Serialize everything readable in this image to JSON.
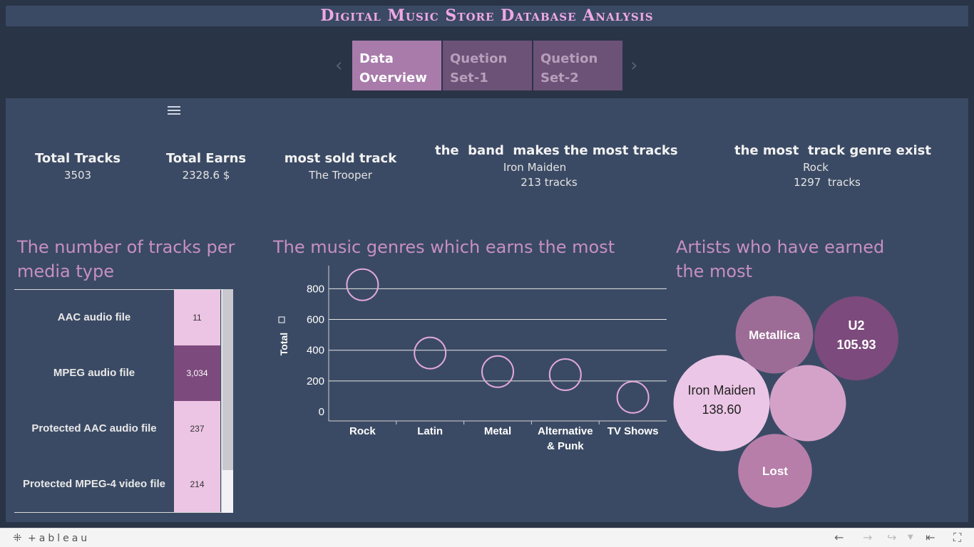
{
  "title": "Digital Music Store Database Analysis",
  "tabs": [
    {
      "label_line1": "Data",
      "label_line2": "Overview",
      "active": true
    },
    {
      "label_line1": "Quetion",
      "label_line2": "Set-1",
      "active": false
    },
    {
      "label_line1": "Quetion",
      "label_line2": "Set-2",
      "active": false
    }
  ],
  "kpis": {
    "total_tracks": {
      "label": "Total Tracks",
      "value": "3503"
    },
    "total_earns": {
      "label": "Total Earns",
      "value": "2328.6 $"
    },
    "most_sold": {
      "label": "most sold track",
      "value": "The Trooper"
    },
    "top_band": {
      "label": "the  band  makes the most tracks",
      "name": "Iron Maiden",
      "count": "213 tracks"
    },
    "top_genre": {
      "label": "the most  track genre exist",
      "name": "Rock",
      "count": "1297  tracks"
    }
  },
  "media": {
    "title_line1": "The number of tracks per",
    "title_line2": "media type",
    "rows": [
      {
        "label": "AAC audio file",
        "value": "11",
        "color": "#ecc4e4",
        "text_color": "#333333"
      },
      {
        "label": "MPEG audio file",
        "value": "3,034",
        "color": "#7c4a7c",
        "text_color": "#ffffff"
      },
      {
        "label": "Protected AAC audio file",
        "value": "237",
        "color": "#ecc4e4",
        "text_color": "#333333"
      },
      {
        "label": "Protected MPEG-4 video file",
        "value": "214",
        "color": "#ecc4e4",
        "text_color": "#333333"
      }
    ]
  },
  "genres": {
    "title": "The music genres which earns the most"
  },
  "artists": {
    "title_line1": "Artists who have earned",
    "title_line2": "the most"
  },
  "chart_data": [
    {
      "type": "scatter",
      "title": "The music genres which earns the most",
      "ylabel": "Total",
      "xlabel": "",
      "categories": [
        "Rock",
        "Latin",
        "Metal",
        "Alternative & Punk",
        "TV Shows"
      ],
      "category_lines": [
        [
          "Rock"
        ],
        [
          "Latin"
        ],
        [
          "Metal"
        ],
        [
          "Alternative",
          "& Punk"
        ],
        [
          "TV Shows"
        ]
      ],
      "values": [
        826,
        382,
        261,
        241,
        94
      ],
      "y_ticks": [
        0,
        200,
        400,
        600,
        800
      ],
      "ylim": [
        -60,
        950
      ],
      "grid": true,
      "marker_color": "#e2a9dc"
    },
    {
      "type": "bubble",
      "title": "Artists who have earned the most",
      "series": [
        {
          "name": "Iron Maiden",
          "value": 138.6,
          "label": "138.60",
          "color": "#ecc6e6",
          "text_color": "#222222"
        },
        {
          "name": "U2",
          "value": 105.93,
          "label": "105.93",
          "color": "#7c4a7c",
          "text_color": "#ffffff"
        },
        {
          "name": "Metallica",
          "value": 90.09,
          "label": "",
          "color": "#9c6c96",
          "text_color": "#ffffff"
        },
        {
          "name": "Lost",
          "value": 81.59,
          "label": "",
          "color": "#b77ea9",
          "text_color": "#ffffff"
        },
        {
          "name": "",
          "value": 87.12,
          "label": "",
          "color": "#d4a2c9",
          "text_color": "#ffffff"
        }
      ]
    }
  ],
  "footer": {
    "brand": "+ableau"
  }
}
